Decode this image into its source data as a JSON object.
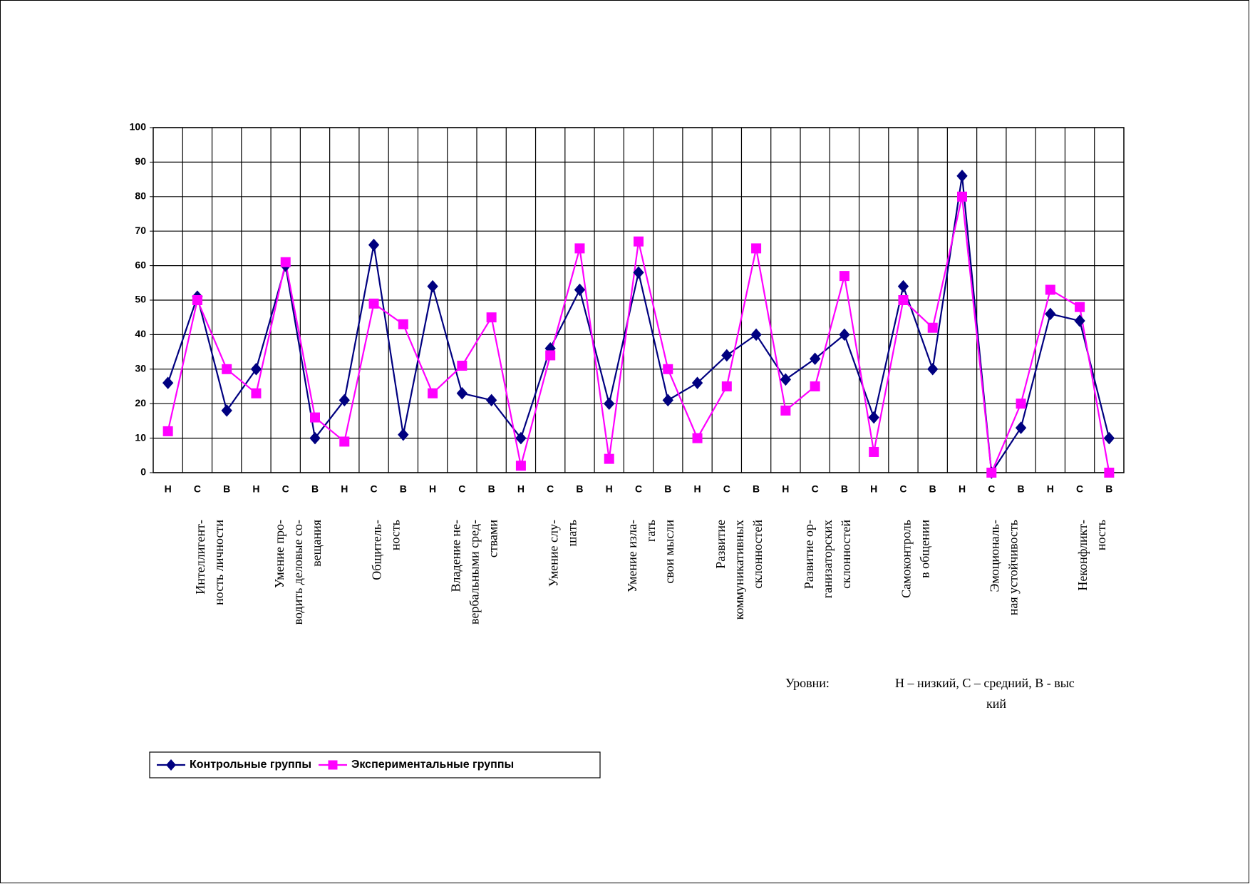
{
  "chart_data": {
    "type": "line",
    "categories": [
      "Н",
      "С",
      "В",
      "Н",
      "С",
      "В",
      "Н",
      "С",
      "В",
      "Н",
      "С",
      "В",
      "Н",
      "С",
      "В",
      "Н",
      "С",
      "В",
      "Н",
      "С",
      "В",
      "Н",
      "С",
      "В",
      "Н",
      "С",
      "В",
      "Н",
      "С",
      "В",
      "Н",
      "С",
      "В"
    ],
    "groups": [
      [
        "Интеллигент-",
        "ность личности"
      ],
      [
        "Умение про-",
        "водить деловые со-",
        "вещания"
      ],
      [
        "Общитель-",
        "ность"
      ],
      [
        "Владение не-",
        "вербальными сред-",
        "ствами"
      ],
      [
        "Умение слу-",
        "шать"
      ],
      [
        "Умение изла-",
        "гать",
        "свои мысли"
      ],
      [
        "Развитие",
        "коммуникативных",
        "склонностей"
      ],
      [
        "Развитие ор-",
        "ганизаторских",
        "склонностей"
      ],
      [
        "Самоконтроль",
        "в общении"
      ],
      [
        "Эмоциональ-",
        "ная устойчивость"
      ],
      [
        "Неконфликт-",
        "ность"
      ]
    ],
    "series": [
      {
        "name": "Контрольные группы",
        "color": "#000080",
        "marker": "diamond",
        "values": [
          26,
          51,
          18,
          30,
          60,
          10,
          21,
          66,
          11,
          54,
          23,
          21,
          10,
          36,
          53,
          20,
          58,
          21,
          26,
          34,
          40,
          27,
          33,
          40,
          16,
          54,
          30,
          86,
          0,
          13,
          46,
          44,
          10
        ]
      },
      {
        "name": "Экспериментальные группы",
        "color": "#ff00ff",
        "marker": "square",
        "values": [
          12,
          50,
          30,
          23,
          61,
          16,
          9,
          49,
          43,
          23,
          31,
          45,
          2,
          34,
          65,
          4,
          67,
          30,
          10,
          25,
          65,
          18,
          25,
          57,
          6,
          50,
          42,
          80,
          0,
          20,
          53,
          48,
          0
        ]
      }
    ],
    "ylim": [
      0,
      100
    ],
    "yticks": [
      0,
      10,
      20,
      30,
      40,
      50,
      60,
      70,
      80,
      90,
      100
    ],
    "grid": true,
    "annotations": [
      "Уровни:",
      [
        "Н – низкий, С – средний, В - выс",
        "кий"
      ]
    ]
  }
}
